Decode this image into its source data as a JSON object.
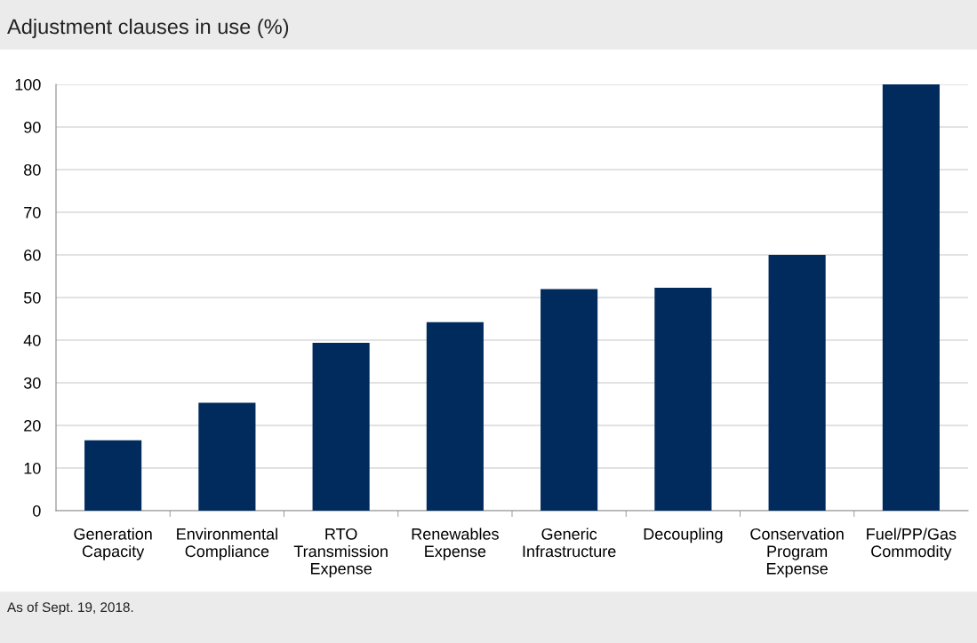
{
  "chart_data": {
    "type": "bar",
    "title": "Adjustment clauses in use (%)",
    "categories": [
      "Generation\nCapacity",
      "Environmental\nCompliance",
      "RTO\nTransmission\nExpense",
      "Renewables\nExpense",
      "Generic\nInfrastructure",
      "Decoupling",
      "Conservation\nProgram\nExpense",
      "Fuel/PP/Gas\nCommodity"
    ],
    "values": [
      16.5,
      25.3,
      39.4,
      44.2,
      52,
      52.3,
      60,
      100
    ],
    "color": "#002b5c",
    "ylim": [
      0,
      100
    ],
    "yticks": [
      0,
      10,
      20,
      30,
      40,
      50,
      60,
      70,
      80,
      90,
      100
    ],
    "grid": "y",
    "annotations": [
      "As of Sept. 19, 2018."
    ]
  }
}
